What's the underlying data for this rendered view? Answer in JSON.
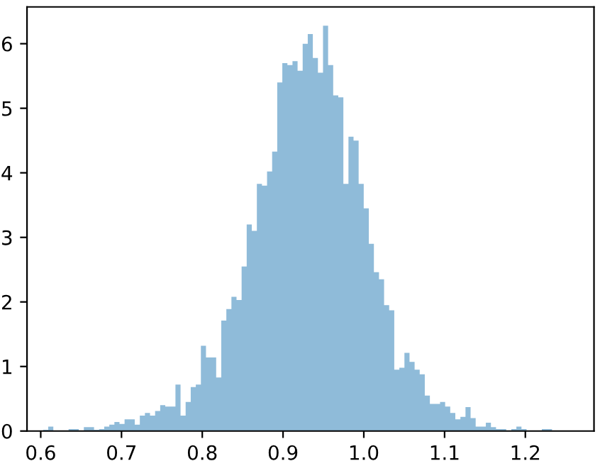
{
  "chart_data": {
    "type": "histogram",
    "color": "#8fbbd9",
    "bins": [
      0.603,
      0.6093,
      0.6156,
      0.6219,
      0.6282,
      0.6345,
      0.6408,
      0.6471,
      0.6534,
      0.6597,
      0.666,
      0.6723,
      0.6786,
      0.6849,
      0.6912,
      0.6975,
      0.7038,
      0.7101,
      0.7164,
      0.7227,
      0.729,
      0.7353,
      0.7416,
      0.7479,
      0.7542,
      0.7605,
      0.7668,
      0.7731,
      0.7794,
      0.7857,
      0.792,
      0.7983,
      0.8046,
      0.8109,
      0.8172,
      0.8235,
      0.8298,
      0.8361,
      0.8424,
      0.8487,
      0.855,
      0.8613,
      0.8676,
      0.8739,
      0.8802,
      0.8865,
      0.8928,
      0.8991,
      0.9054,
      0.9117,
      0.918,
      0.9243,
      0.9306,
      0.9369,
      0.9432,
      0.9495,
      0.9558,
      0.9621,
      0.9684,
      0.9747,
      0.981,
      0.9873,
      0.9936,
      0.9999,
      1.0062,
      1.0125,
      1.0188,
      1.0251,
      1.0314,
      1.0377,
      1.044,
      1.0503,
      1.0566,
      1.0629,
      1.0692,
      1.0755,
      1.0818,
      1.0881,
      1.0944,
      1.1007,
      1.107,
      1.1133,
      1.1196,
      1.1259,
      1.1322,
      1.1385,
      1.1448,
      1.1511,
      1.1574,
      1.1637,
      1.17,
      1.1763,
      1.1826,
      1.1889,
      1.1952,
      1.2015,
      1.2078,
      1.2141,
      1.2204,
      1.2267,
      1.233
    ],
    "values": [
      0.02,
      0.07,
      0.0,
      0.0,
      0.0,
      0.03,
      0.03,
      0.0,
      0.06,
      0.06,
      0.02,
      0.03,
      0.07,
      0.1,
      0.14,
      0.11,
      0.18,
      0.18,
      0.1,
      0.24,
      0.28,
      0.24,
      0.31,
      0.4,
      0.38,
      0.38,
      0.72,
      0.24,
      0.45,
      0.68,
      0.72,
      1.32,
      1.14,
      1.14,
      0.83,
      1.71,
      1.89,
      2.08,
      2.03,
      2.55,
      3.2,
      3.1,
      3.83,
      3.8,
      4.02,
      4.33,
      5.4,
      5.7,
      5.67,
      5.73,
      5.58,
      6.0,
      6.15,
      5.78,
      5.55,
      6.28,
      5.67,
      5.2,
      5.17,
      3.83,
      4.56,
      4.5,
      3.83,
      3.45,
      2.9,
      2.46,
      2.35,
      1.95,
      1.87,
      0.95,
      0.98,
      1.21,
      1.07,
      0.95,
      0.88,
      0.55,
      0.42,
      0.42,
      0.45,
      0.38,
      0.28,
      0.18,
      0.22,
      0.37,
      0.2,
      0.07,
      0.07,
      0.13,
      0.06,
      0.03,
      0.03,
      0.0,
      0.03,
      0.07,
      0.03,
      0.0,
      0.0,
      0.0,
      0.03,
      0.03
    ],
    "xlim": [
      0.583,
      1.285
    ],
    "ylim": [
      0,
      6.57
    ],
    "xticks": [
      0.6,
      0.7,
      0.8,
      0.9,
      {
        "value": 1.0,
        "label": "1.0"
      },
      1.1,
      1.2
    ],
    "yticks": [
      0,
      1,
      2,
      3,
      4,
      5,
      6
    ]
  }
}
